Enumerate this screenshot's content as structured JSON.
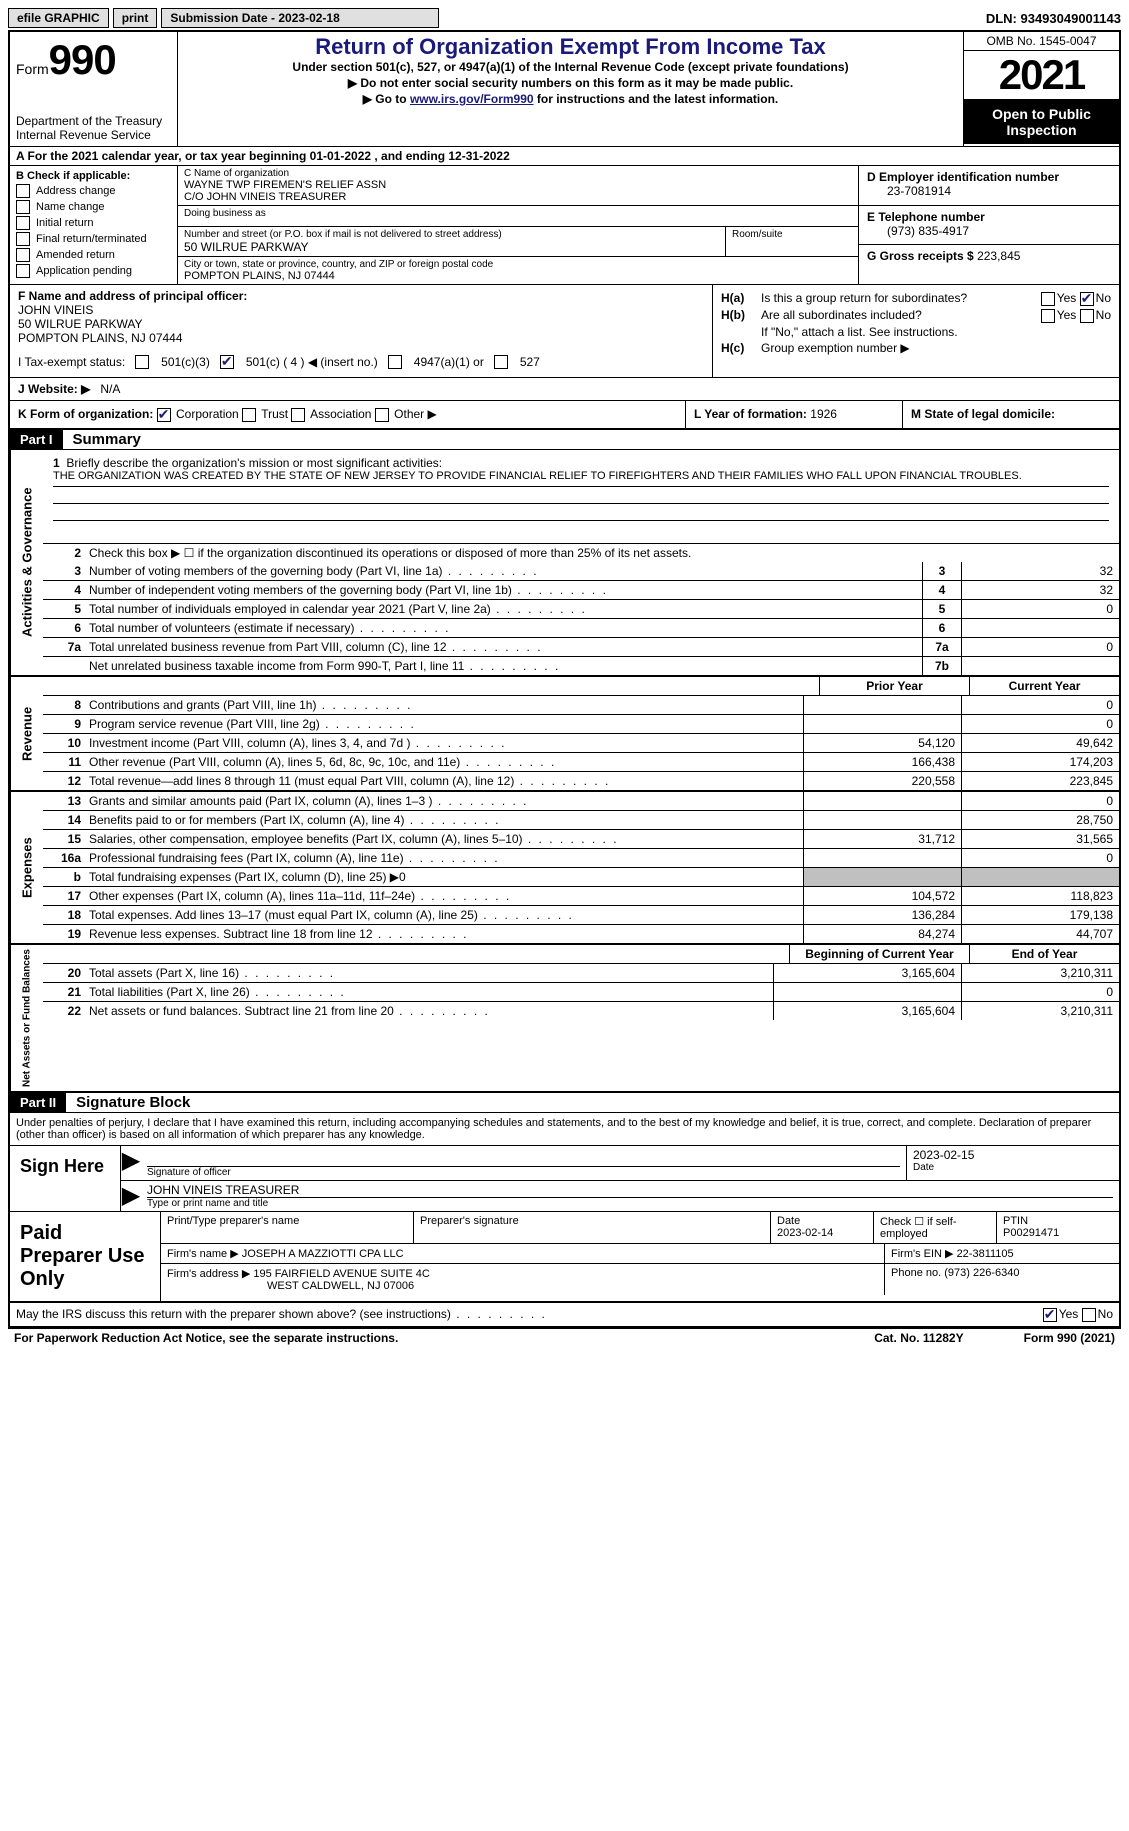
{
  "topbar": {
    "efile": "efile GRAPHIC",
    "print": "print",
    "submission_label": "Submission Date - 2023-02-18",
    "dln": "DLN: 93493049001143"
  },
  "header": {
    "form_label": "Form",
    "form_number": "990",
    "dept": "Department of the Treasury\nInternal Revenue Service",
    "title": "Return of Organization Exempt From Income Tax",
    "subtitle": "Under section 501(c), 527, or 4947(a)(1) of the Internal Revenue Code (except private foundations)",
    "line2": "▶ Do not enter social security numbers on this form as it may be made public.",
    "line3_pre": "▶ Go to ",
    "line3_link": "www.irs.gov/Form990",
    "line3_post": " for instructions and the latest information.",
    "omb": "OMB No. 1545-0047",
    "year": "2021",
    "open": "Open to Public Inspection"
  },
  "row_a": "A   For the 2021 calendar year, or tax year beginning 01-01-2022    , and ending 12-31-2022",
  "col_b": {
    "header": "B Check if applicable:",
    "items": [
      "Address change",
      "Name change",
      "Initial return",
      "Final return/terminated",
      "Amended return",
      "Application pending"
    ]
  },
  "col_c": {
    "name_label": "C Name of organization",
    "name1": "WAYNE TWP FIREMEN'S RELIEF ASSN",
    "name2": "C/O JOHN VINEIS TREASURER",
    "dba_label": "Doing business as",
    "addr_label": "Number and street (or P.O. box if mail is not delivered to street address)",
    "addr": "50 WILRUE PARKWAY",
    "room_label": "Room/suite",
    "city_label": "City or town, state or province, country, and ZIP or foreign postal code",
    "city": "POMPTON PLAINS, NJ  07444"
  },
  "col_d": {
    "ein_label": "D Employer identification number",
    "ein": "23-7081914",
    "phone_label": "E Telephone number",
    "phone": "(973) 835-4917",
    "gross_label": "G Gross receipts $",
    "gross": "223,845"
  },
  "section_f": {
    "label": "F  Name and address of principal officer:",
    "name": "JOHN VINEIS",
    "addr1": "50 WILRUE PARKWAY",
    "addr2": "POMPTON PLAINS, NJ  07444"
  },
  "section_h": {
    "ha_label": "H(a)",
    "ha_text": "Is this a group return for subordinates?",
    "hb_label": "H(b)",
    "hb_text": "Are all subordinates included?",
    "hb_note": "If \"No,\" attach a list. See instructions.",
    "hc_label": "H(c)",
    "hc_text": "Group exemption number ▶"
  },
  "tax_status": {
    "label": "I   Tax-exempt status:",
    "opt1": "501(c)(3)",
    "opt2": "501(c) ( 4 ) ◀ (insert no.)",
    "opt3": "4947(a)(1) or",
    "opt4": "527"
  },
  "website": {
    "label": "J   Website: ▶",
    "value": "N/A"
  },
  "row_k": {
    "k_label": "K Form of organization:",
    "k_opts": [
      "Corporation",
      "Trust",
      "Association",
      "Other ▶"
    ],
    "l_label": "L Year of formation:",
    "l_val": "1926",
    "m_label": "M State of legal domicile:"
  },
  "part1": {
    "header": "Part I",
    "title": "Summary",
    "line1_label": "1",
    "line1_text": "Briefly describe the organization's mission or most significant activities:",
    "mission": "THE ORGANIZATION WAS CREATED BY THE STATE OF NEW JERSEY TO PROVIDE FINANCIAL RELIEF TO FIREFIGHTERS AND THEIR FAMILIES WHO FALL UPON FINANCIAL TROUBLES.",
    "line2": "Check this box ▶ ☐  if the organization discontinued its operations or disposed of more than 25% of its net assets.",
    "vert_gov": "Activities & Governance",
    "vert_rev": "Revenue",
    "vert_exp": "Expenses",
    "vert_net": "Net Assets or Fund Balances",
    "prior_header": "Prior Year",
    "current_header": "Current Year",
    "begin_header": "Beginning of Current Year",
    "end_header": "End of Year",
    "lines_gov": [
      {
        "n": "3",
        "t": "Number of voting members of the governing body (Part VI, line 1a)",
        "box": "3",
        "v": "32"
      },
      {
        "n": "4",
        "t": "Number of independent voting members of the governing body (Part VI, line 1b)",
        "box": "4",
        "v": "32"
      },
      {
        "n": "5",
        "t": "Total number of individuals employed in calendar year 2021 (Part V, line 2a)",
        "box": "5",
        "v": "0"
      },
      {
        "n": "6",
        "t": "Total number of volunteers (estimate if necessary)",
        "box": "6",
        "v": ""
      },
      {
        "n": "7a",
        "t": "Total unrelated business revenue from Part VIII, column (C), line 12",
        "box": "7a",
        "v": "0"
      },
      {
        "n": "",
        "t": "Net unrelated business taxable income from Form 990-T, Part I, line 11",
        "box": "7b",
        "v": ""
      }
    ],
    "lines_rev": [
      {
        "n": "8",
        "t": "Contributions and grants (Part VIII, line 1h)",
        "p": "",
        "c": "0"
      },
      {
        "n": "9",
        "t": "Program service revenue (Part VIII, line 2g)",
        "p": "",
        "c": "0"
      },
      {
        "n": "10",
        "t": "Investment income (Part VIII, column (A), lines 3, 4, and 7d )",
        "p": "54,120",
        "c": "49,642"
      },
      {
        "n": "11",
        "t": "Other revenue (Part VIII, column (A), lines 5, 6d, 8c, 9c, 10c, and 11e)",
        "p": "166,438",
        "c": "174,203"
      },
      {
        "n": "12",
        "t": "Total revenue—add lines 8 through 11 (must equal Part VIII, column (A), line 12)",
        "p": "220,558",
        "c": "223,845"
      }
    ],
    "lines_exp": [
      {
        "n": "13",
        "t": "Grants and similar amounts paid (Part IX, column (A), lines 1–3 )",
        "p": "",
        "c": "0"
      },
      {
        "n": "14",
        "t": "Benefits paid to or for members (Part IX, column (A), line 4)",
        "p": "",
        "c": "28,750"
      },
      {
        "n": "15",
        "t": "Salaries, other compensation, employee benefits (Part IX, column (A), lines 5–10)",
        "p": "31,712",
        "c": "31,565"
      },
      {
        "n": "16a",
        "t": "Professional fundraising fees (Part IX, column (A), line 11e)",
        "p": "",
        "c": "0"
      },
      {
        "n": "b",
        "t": "Total fundraising expenses (Part IX, column (D), line 25) ▶0",
        "p": "GREY",
        "c": "GREY"
      },
      {
        "n": "17",
        "t": "Other expenses (Part IX, column (A), lines 11a–11d, 11f–24e)",
        "p": "104,572",
        "c": "118,823"
      },
      {
        "n": "18",
        "t": "Total expenses. Add lines 13–17 (must equal Part IX, column (A), line 25)",
        "p": "136,284",
        "c": "179,138"
      },
      {
        "n": "19",
        "t": "Revenue less expenses. Subtract line 18 from line 12",
        "p": "84,274",
        "c": "44,707"
      }
    ],
    "lines_net": [
      {
        "n": "20",
        "t": "Total assets (Part X, line 16)",
        "p": "3,165,604",
        "c": "3,210,311"
      },
      {
        "n": "21",
        "t": "Total liabilities (Part X, line 26)",
        "p": "",
        "c": "0"
      },
      {
        "n": "22",
        "t": "Net assets or fund balances. Subtract line 21 from line 20",
        "p": "3,165,604",
        "c": "3,210,311"
      }
    ]
  },
  "part2": {
    "header": "Part II",
    "title": "Signature Block",
    "declaration": "Under penalties of perjury, I declare that I have examined this return, including accompanying schedules and statements, and to the best of my knowledge and belief, it is true, correct, and complete. Declaration of preparer (other than officer) is based on all information of which preparer has any knowledge.",
    "sign_here": "Sign Here",
    "sig_officer": "Signature of officer",
    "sig_date": "Date",
    "sig_date_val": "2023-02-15",
    "sig_name": "JOHN VINEIS TREASURER",
    "sig_name_label": "Type or print name and title",
    "paid": "Paid Preparer Use Only",
    "prep_name_label": "Print/Type preparer's name",
    "prep_sig_label": "Preparer's signature",
    "prep_date_label": "Date",
    "prep_date": "2023-02-14",
    "prep_check": "Check ☐ if self-employed",
    "ptin_label": "PTIN",
    "ptin": "P00291471",
    "firm_name_label": "Firm's name    ▶",
    "firm_name": "JOSEPH A MAZZIOTTI CPA LLC",
    "firm_ein_label": "Firm's EIN ▶",
    "firm_ein": "22-3811105",
    "firm_addr_label": "Firm's address ▶",
    "firm_addr1": "195 FAIRFIELD AVENUE SUITE 4C",
    "firm_addr2": "WEST CALDWELL, NJ  07006",
    "firm_phone_label": "Phone no.",
    "firm_phone": "(973) 226-6340"
  },
  "footer": {
    "discuss": "May the IRS discuss this return with the preparer shown above? (see instructions)",
    "notice": "For Paperwork Reduction Act Notice, see the separate instructions.",
    "cat": "Cat. No. 11282Y",
    "form": "Form 990 (2021)"
  }
}
